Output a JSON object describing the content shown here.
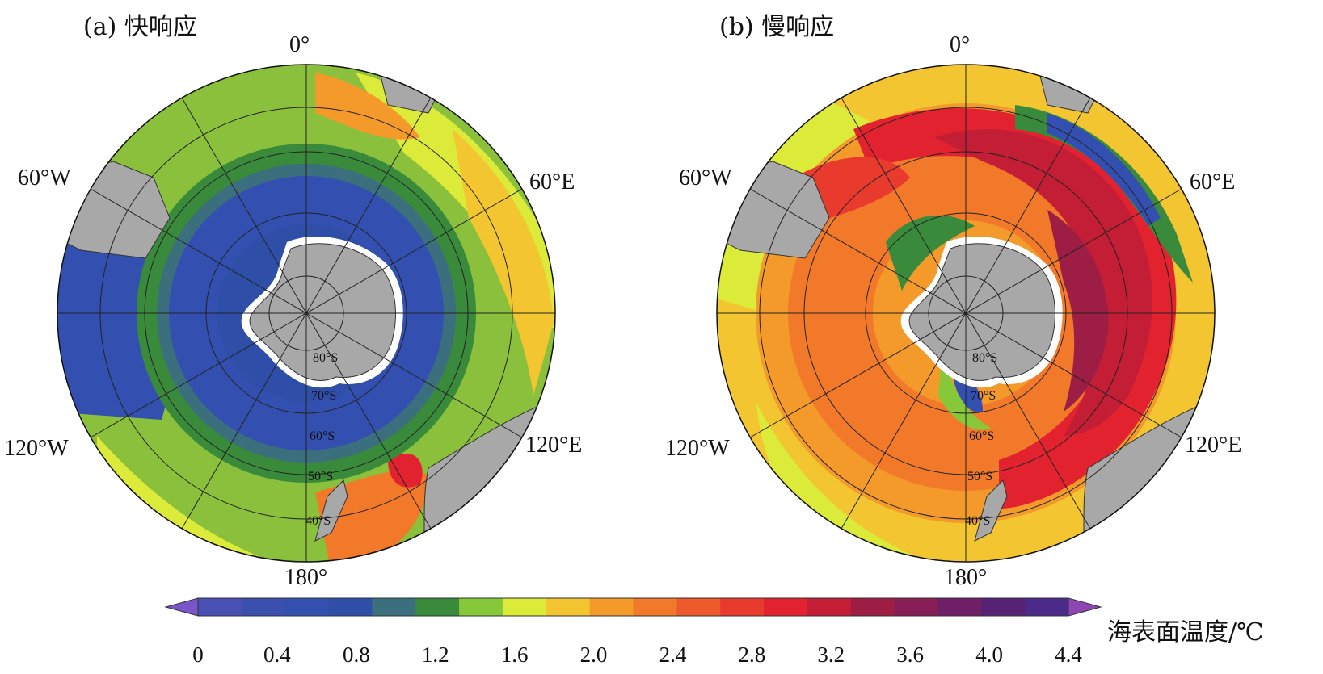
{
  "panels": [
    {
      "title": "(a) 快响应",
      "lon_labels": {
        "top": "0°",
        "e60": "60°E",
        "e120": "120°E",
        "bottom": "180°",
        "w60": "60°W",
        "w120": "120°W"
      },
      "lat_labels": [
        "80°S",
        "70°S",
        "60°S",
        "50°S",
        "40°S"
      ]
    },
    {
      "title": "(b) 慢响应",
      "lon_labels": {
        "top": "0°",
        "e60": "60°E",
        "e120": "120°E",
        "bottom": "180°",
        "w60": "60°W",
        "w120": "120°W"
      },
      "lat_labels": [
        "80°S",
        "70°S",
        "60°S",
        "50°S",
        "40°S"
      ]
    }
  ],
  "colorbar": {
    "label": "海表面温度/℃",
    "ticks": [
      "0",
      "0.4",
      "0.8",
      "1.2",
      "1.6",
      "2.0",
      "2.4",
      "2.8",
      "3.2",
      "3.6",
      "4.0",
      "4.4"
    ],
    "colors": [
      "#7a55c8",
      "#4a4fb4",
      "#3a4fae",
      "#3350b0",
      "#2f4ea8",
      "#3b6f7e",
      "#3a8a3c",
      "#86c83a",
      "#dcea3a",
      "#f2c531",
      "#f39a2a",
      "#f2792a",
      "#ef5a2c",
      "#e93a2e",
      "#e2232f",
      "#c41e36",
      "#9e1d45",
      "#861e55",
      "#6f1f65",
      "#572276",
      "#4b2a8a",
      "#8f46b3"
    ]
  }
}
